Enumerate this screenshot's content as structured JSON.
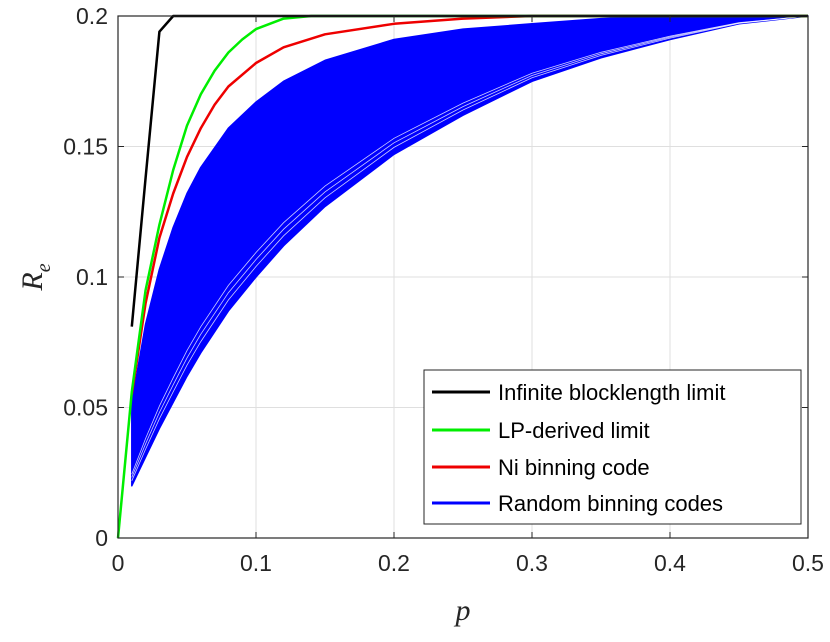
{
  "chart_data": {
    "type": "line",
    "xlabel": "p",
    "ylabel": "R",
    "ylabel_subscript": "e",
    "xlim": [
      0,
      0.5
    ],
    "ylim": [
      0,
      0.2
    ],
    "xticks": [
      0,
      0.1,
      0.2,
      0.3,
      0.4,
      0.5
    ],
    "yticks": [
      0,
      0.05,
      0.1,
      0.15,
      0.2
    ],
    "xtick_labels": [
      "0",
      "0.1",
      "0.2",
      "0.3",
      "0.4",
      "0.5"
    ],
    "ytick_labels": [
      "0",
      "0.05",
      "0.1",
      "0.15",
      "0.2"
    ],
    "grid": true,
    "legend_position": "bottom-right",
    "series": [
      {
        "name": "Infinite blocklength limit",
        "color": "#000000",
        "x": [
          0.01,
          0.02,
          0.03,
          0.04,
          0.05,
          0.1,
          0.2,
          0.3,
          0.4,
          0.5
        ],
        "y": [
          0.081,
          0.138,
          0.194,
          0.2,
          0.2,
          0.2,
          0.2,
          0.2,
          0.2,
          0.2
        ]
      },
      {
        "name": "LP-derived limit",
        "color": "#00ee00",
        "x": [
          0,
          0.01,
          0.02,
          0.03,
          0.04,
          0.05,
          0.06,
          0.07,
          0.08,
          0.09,
          0.1,
          0.12,
          0.14,
          0.2,
          0.3,
          0.4,
          0.5
        ],
        "y": [
          0,
          0.056,
          0.095,
          0.12,
          0.141,
          0.158,
          0.17,
          0.179,
          0.186,
          0.191,
          0.195,
          0.199,
          0.2,
          0.2,
          0.2,
          0.2,
          0.2
        ]
      },
      {
        "name": "Ni binning code",
        "color": "#ee0000",
        "x": [
          0.01,
          0.02,
          0.03,
          0.04,
          0.05,
          0.06,
          0.07,
          0.08,
          0.1,
          0.12,
          0.15,
          0.2,
          0.25,
          0.3,
          0.4,
          0.5
        ],
        "y": [
          0.055,
          0.09,
          0.115,
          0.132,
          0.146,
          0.157,
          0.166,
          0.173,
          0.182,
          0.188,
          0.193,
          0.197,
          0.199,
          0.2,
          0.2,
          0.2
        ]
      },
      {
        "name": "Random binning codes",
        "color": "#0000ff",
        "band": true,
        "x": [
          0.01,
          0.02,
          0.03,
          0.04,
          0.05,
          0.06,
          0.08,
          0.1,
          0.12,
          0.15,
          0.2,
          0.25,
          0.3,
          0.35,
          0.4,
          0.45,
          0.5
        ],
        "y_upper": [
          0.052,
          0.082,
          0.103,
          0.119,
          0.132,
          0.142,
          0.157,
          0.167,
          0.175,
          0.183,
          0.191,
          0.195,
          0.197,
          0.199,
          0.2,
          0.2,
          0.2
        ],
        "y_lower": [
          0.02,
          0.031,
          0.042,
          0.052,
          0.062,
          0.071,
          0.087,
          0.1,
          0.112,
          0.127,
          0.147,
          0.162,
          0.175,
          0.184,
          0.191,
          0.197,
          0.2
        ]
      }
    ]
  }
}
